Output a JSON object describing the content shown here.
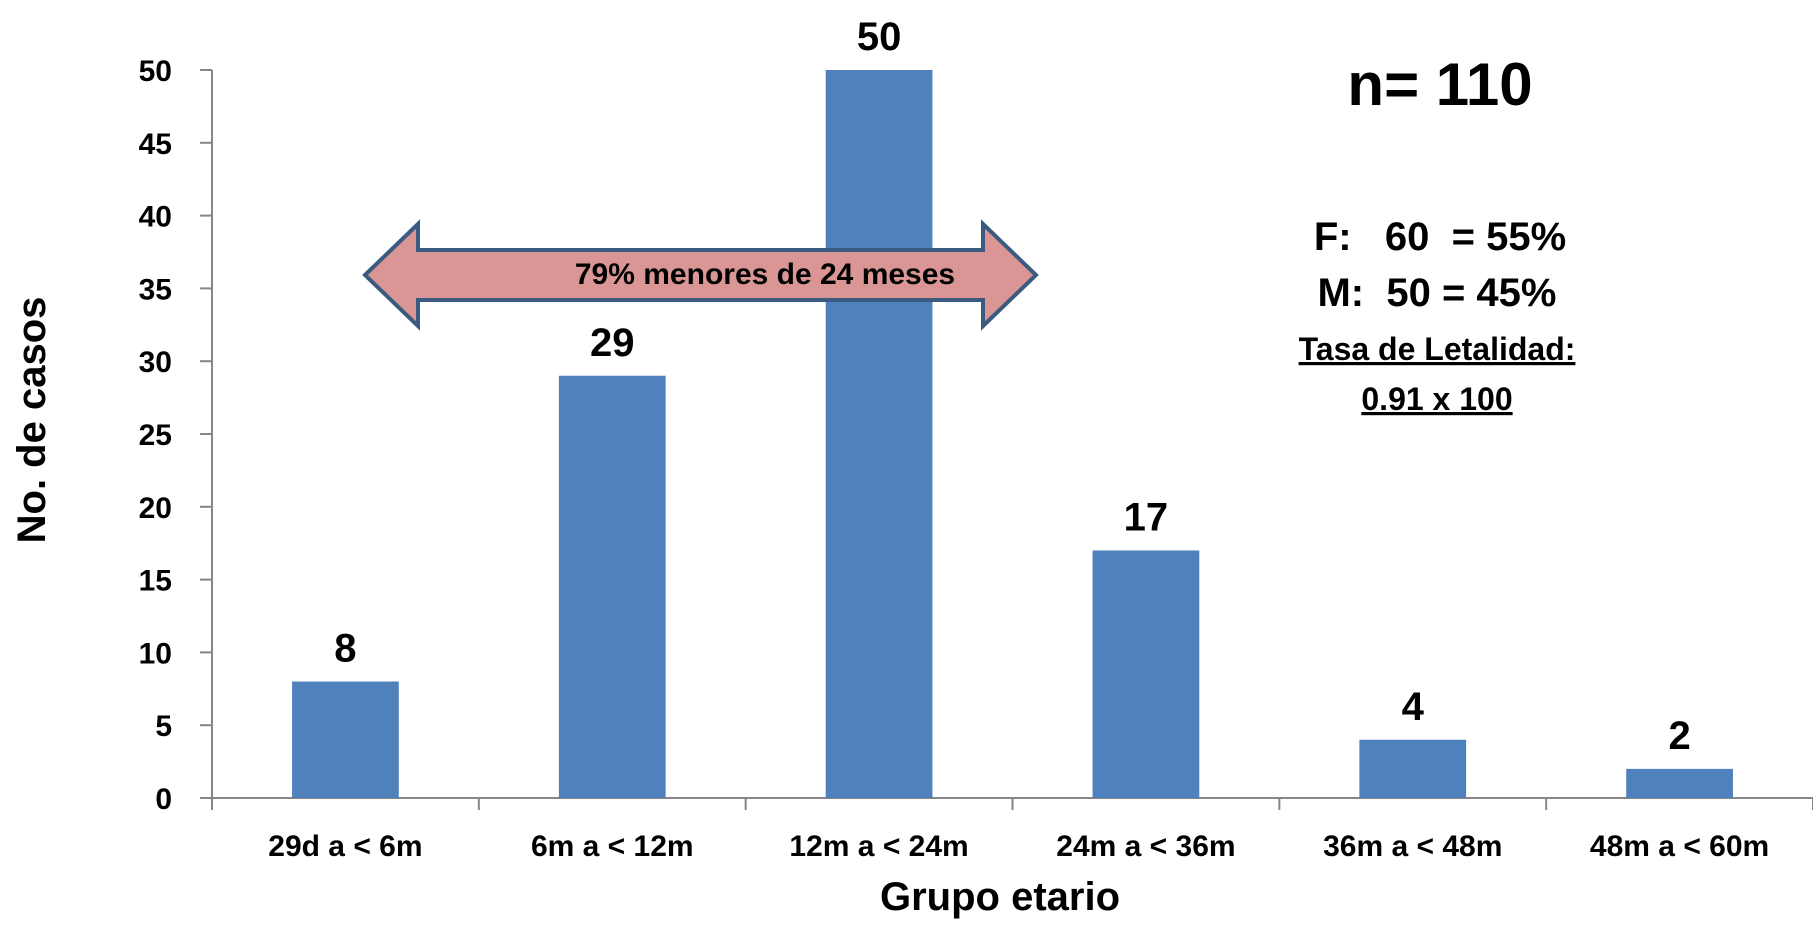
{
  "chart_data": {
    "type": "bar",
    "categories": [
      "29d a < 6m",
      "6m a < 12m",
      "12m a < 24m",
      "24m a < 36m",
      "36m a < 48m",
      "48m a < 60m"
    ],
    "values": [
      8,
      29,
      50,
      17,
      4,
      2
    ],
    "xlabel": "Grupo etario",
    "ylabel": "No. de casos",
    "ylim": [
      0,
      50
    ],
    "yticks": [
      0,
      5,
      10,
      15,
      20,
      25,
      30,
      35,
      40,
      45,
      50
    ],
    "grid": false,
    "bar_color": "#4F81BD",
    "arrow_color": "#DA9694",
    "arrow_stroke": "#3A5A80",
    "annotations": {
      "arrow_label": "79% menores de 24 meses",
      "n_label": "n= 110",
      "f_label": "F:   60  = 55%",
      "m_label": "M:  50 = 45%",
      "tasa_label": "Tasa de Letalidad:",
      "tasa_value": "0.91 x 100"
    }
  }
}
